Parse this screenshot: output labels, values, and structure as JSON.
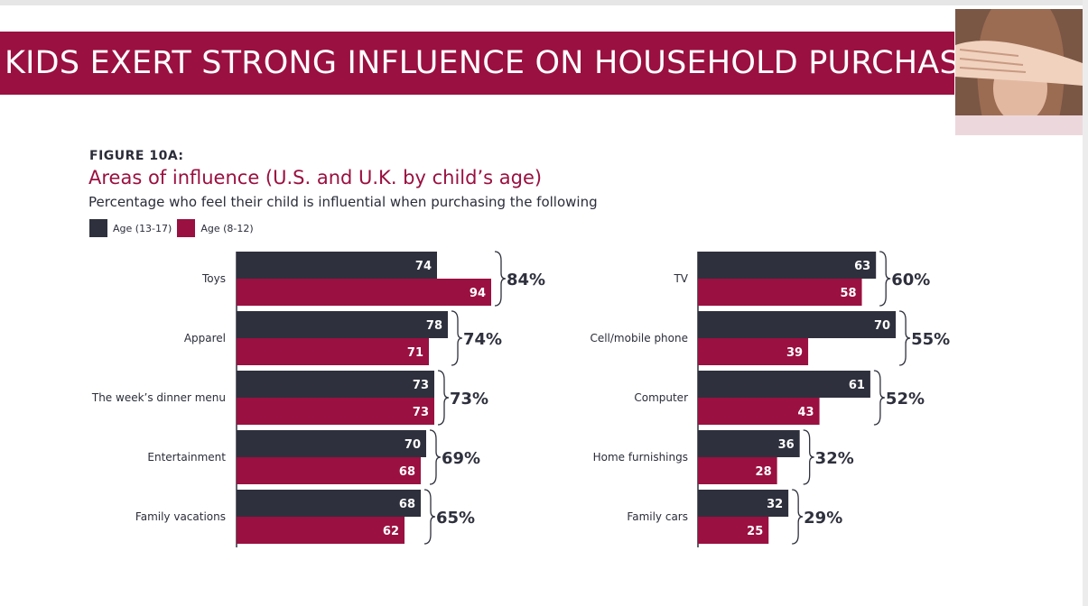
{
  "header": {
    "title": "KIDS EXERT STRONG INFLUENCE ON HOUSEHOLD PURCHASES"
  },
  "figure": {
    "label": "FIGURE 10A:",
    "title": "Areas of influence (U.S. and U.K. by child’s age)",
    "subtitle": "Percentage who feel their child is influential when purchasing the following"
  },
  "colors": {
    "teen": "#2e303d",
    "child": "#9a1040",
    "banner": "#9a1040"
  },
  "chart_data": [
    {
      "type": "bar",
      "orientation": "horizontal",
      "categories": [
        "Toys",
        "Apparel",
        "The week’s dinner menu",
        "Entertainment",
        "Family vacations"
      ],
      "series": [
        {
          "name": "Age (13-17)",
          "values": [
            74,
            78,
            73,
            70,
            68
          ]
        },
        {
          "name": "Age (8-12)",
          "values": [
            94,
            71,
            73,
            68,
            62
          ]
        }
      ],
      "totals": [
        "84%",
        "74%",
        "73%",
        "69%",
        "65%"
      ],
      "xlim": [
        0,
        100
      ],
      "legend": "top-left"
    },
    {
      "type": "bar",
      "orientation": "horizontal",
      "categories": [
        "TV",
        "Cell/mobile phone",
        "Computer",
        "Home furnishings",
        "Family cars"
      ],
      "series": [
        {
          "name": "Age (13-17)",
          "values": [
            63,
            70,
            61,
            36,
            32
          ]
        },
        {
          "name": "Age (8-12)",
          "values": [
            58,
            39,
            43,
            28,
            25
          ]
        }
      ],
      "totals": [
        "60%",
        "55%",
        "52%",
        "32%",
        "29%"
      ],
      "xlim": [
        0,
        100
      ]
    }
  ]
}
